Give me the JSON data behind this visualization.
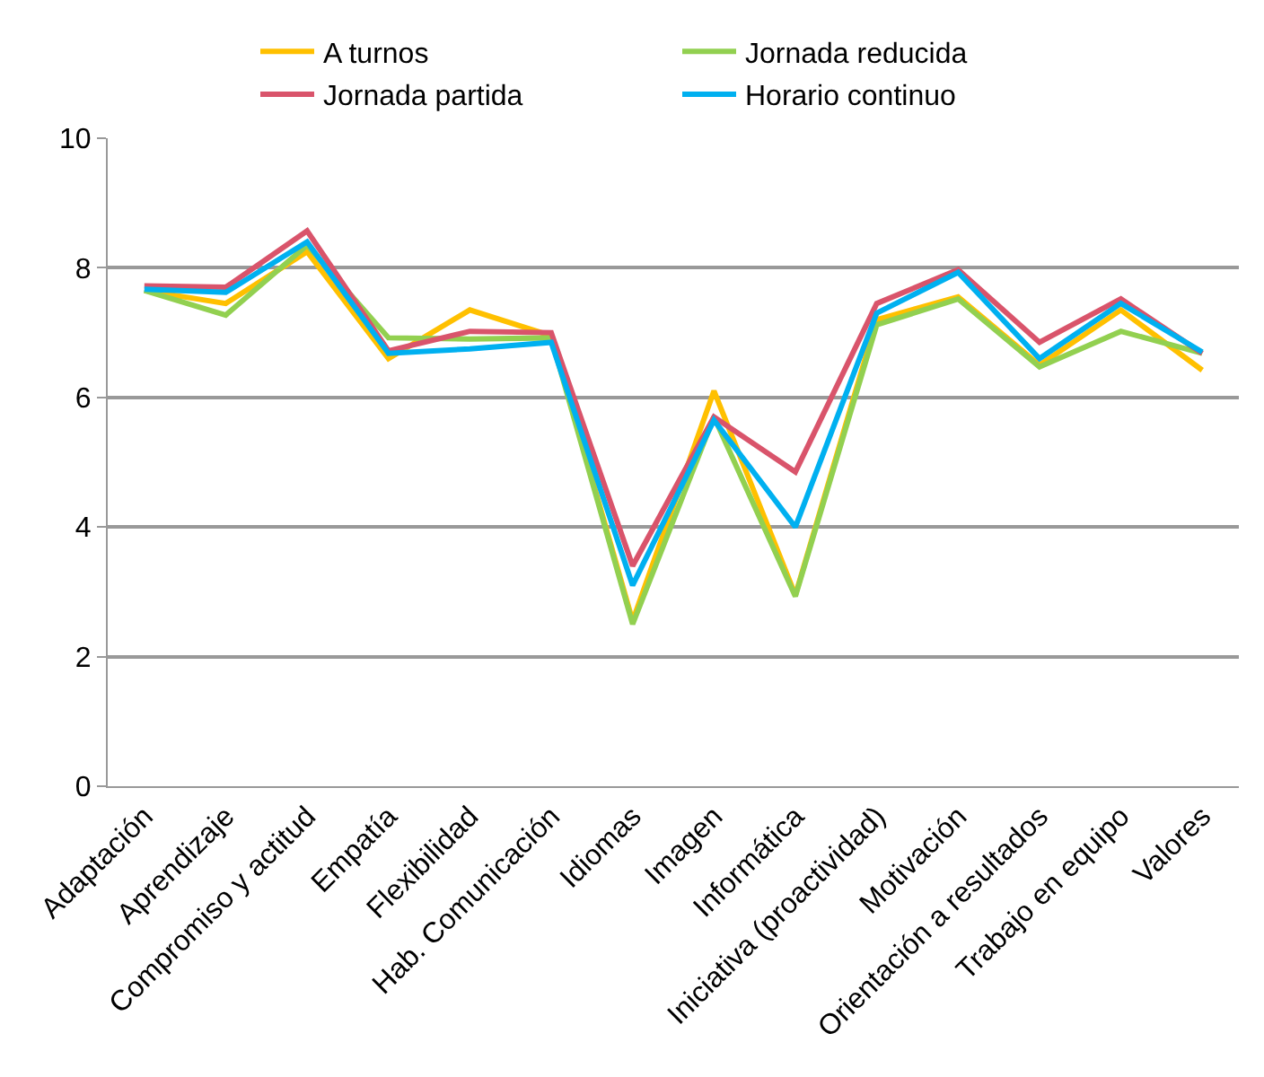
{
  "chart_data": {
    "type": "line",
    "categories": [
      "Adaptación",
      "Aprendizaje",
      "Compromiso y actitud",
      "Empatía",
      "Flexibilidad",
      "Hab. Comunicación",
      "Idiomas",
      "Imagen",
      "Informática",
      "Iniciativa (proactividad)",
      "Motivación",
      "Orientación a resultados",
      "Trabajo en equipo",
      "Valores"
    ],
    "series": [
      {
        "name": "A turnos",
        "color": "#ffc000",
        "values": [
          7.65,
          7.45,
          8.25,
          6.6,
          7.35,
          6.95,
          2.55,
          6.1,
          2.95,
          7.2,
          7.55,
          6.5,
          7.35,
          6.42
        ]
      },
      {
        "name": "Jornada reducida",
        "color": "#92d050",
        "values": [
          7.65,
          7.27,
          8.35,
          6.92,
          6.9,
          6.92,
          2.5,
          5.7,
          2.93,
          7.12,
          7.52,
          6.47,
          7.02,
          6.68
        ]
      },
      {
        "name": "Jornada partida",
        "color": "#d9546b",
        "values": [
          7.72,
          7.7,
          8.57,
          6.72,
          7.02,
          7.0,
          3.4,
          5.7,
          4.85,
          7.45,
          7.97,
          6.85,
          7.52,
          6.68
        ]
      },
      {
        "name": "Horario continuo",
        "color": "#00b0f0",
        "values": [
          7.67,
          7.62,
          8.4,
          6.68,
          6.75,
          6.85,
          3.1,
          5.65,
          4.0,
          7.3,
          7.93,
          6.6,
          7.45,
          6.7
        ]
      }
    ],
    "ylim": [
      0,
      10
    ],
    "yticks": [
      0,
      2,
      4,
      6,
      8,
      10
    ],
    "grid": "y",
    "legend": "top",
    "marker": "none",
    "line_style": "solid"
  }
}
